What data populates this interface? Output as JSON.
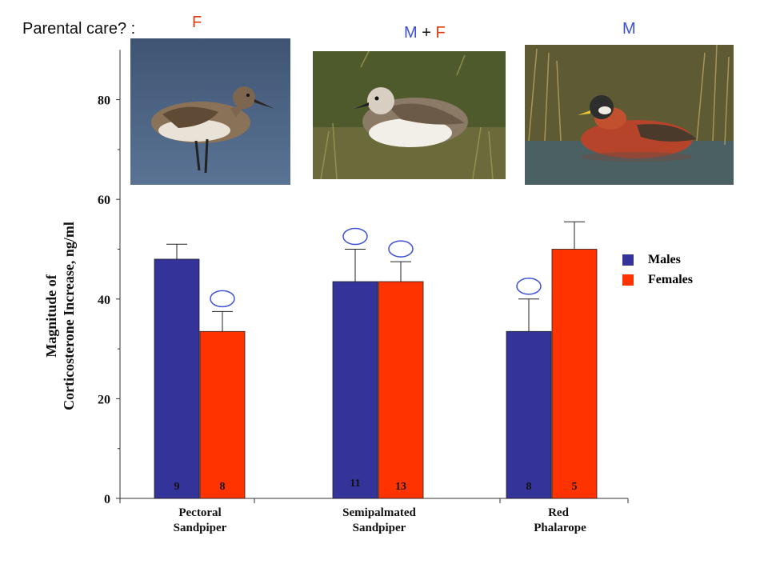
{
  "header": {
    "question": "Parental care? :",
    "pectoral_care": "F",
    "semi_care_m": "M",
    "semi_care_plus": " + ",
    "semi_care_f": "F",
    "phalarope_care": "M",
    "colors": {
      "male": "#3c50d8",
      "female": "#e03a10",
      "text": "#111111"
    }
  },
  "photos": [
    {
      "name": "pectoral-sandpiper-photo",
      "icon": "sandpiper-bird"
    },
    {
      "name": "semipalmated-sandpiper-photo",
      "icon": "sandpiper-bird"
    },
    {
      "name": "red-phalarope-photo",
      "icon": "phalarope-bird"
    }
  ],
  "chart_data": {
    "type": "bar",
    "ylabel_line1": "Magnitude of",
    "ylabel_line2": "Corticosterone Increase, ng/ml",
    "ylim": [
      0,
      90
    ],
    "yticks": [
      "0",
      "20",
      "40",
      "60",
      "80"
    ],
    "categories": [
      {
        "line1": "Pectoral",
        "line2": "Sandpiper"
      },
      {
        "line1": "Semipalmated",
        "line2": "Sandpiper"
      },
      {
        "line1": "Red",
        "line2": "Phalarope"
      }
    ],
    "series": [
      {
        "name": "Males",
        "color": "#333399",
        "values": [
          48,
          43.5,
          33.5
        ],
        "errors": [
          51,
          50,
          40
        ],
        "n": [
          "9",
          "11",
          "8"
        ]
      },
      {
        "name": "Females",
        "color": "#ff3300",
        "values": [
          33.5,
          43.5,
          50
        ],
        "errors": [
          37.5,
          47.5,
          55.5
        ],
        "n": [
          "8",
          "13",
          "5"
        ]
      }
    ],
    "care_markers": [
      [
        false,
        true
      ],
      [
        true,
        true
      ],
      [
        true,
        false
      ]
    ],
    "legend": [
      "Males",
      "Females"
    ],
    "legend_position": "right"
  }
}
